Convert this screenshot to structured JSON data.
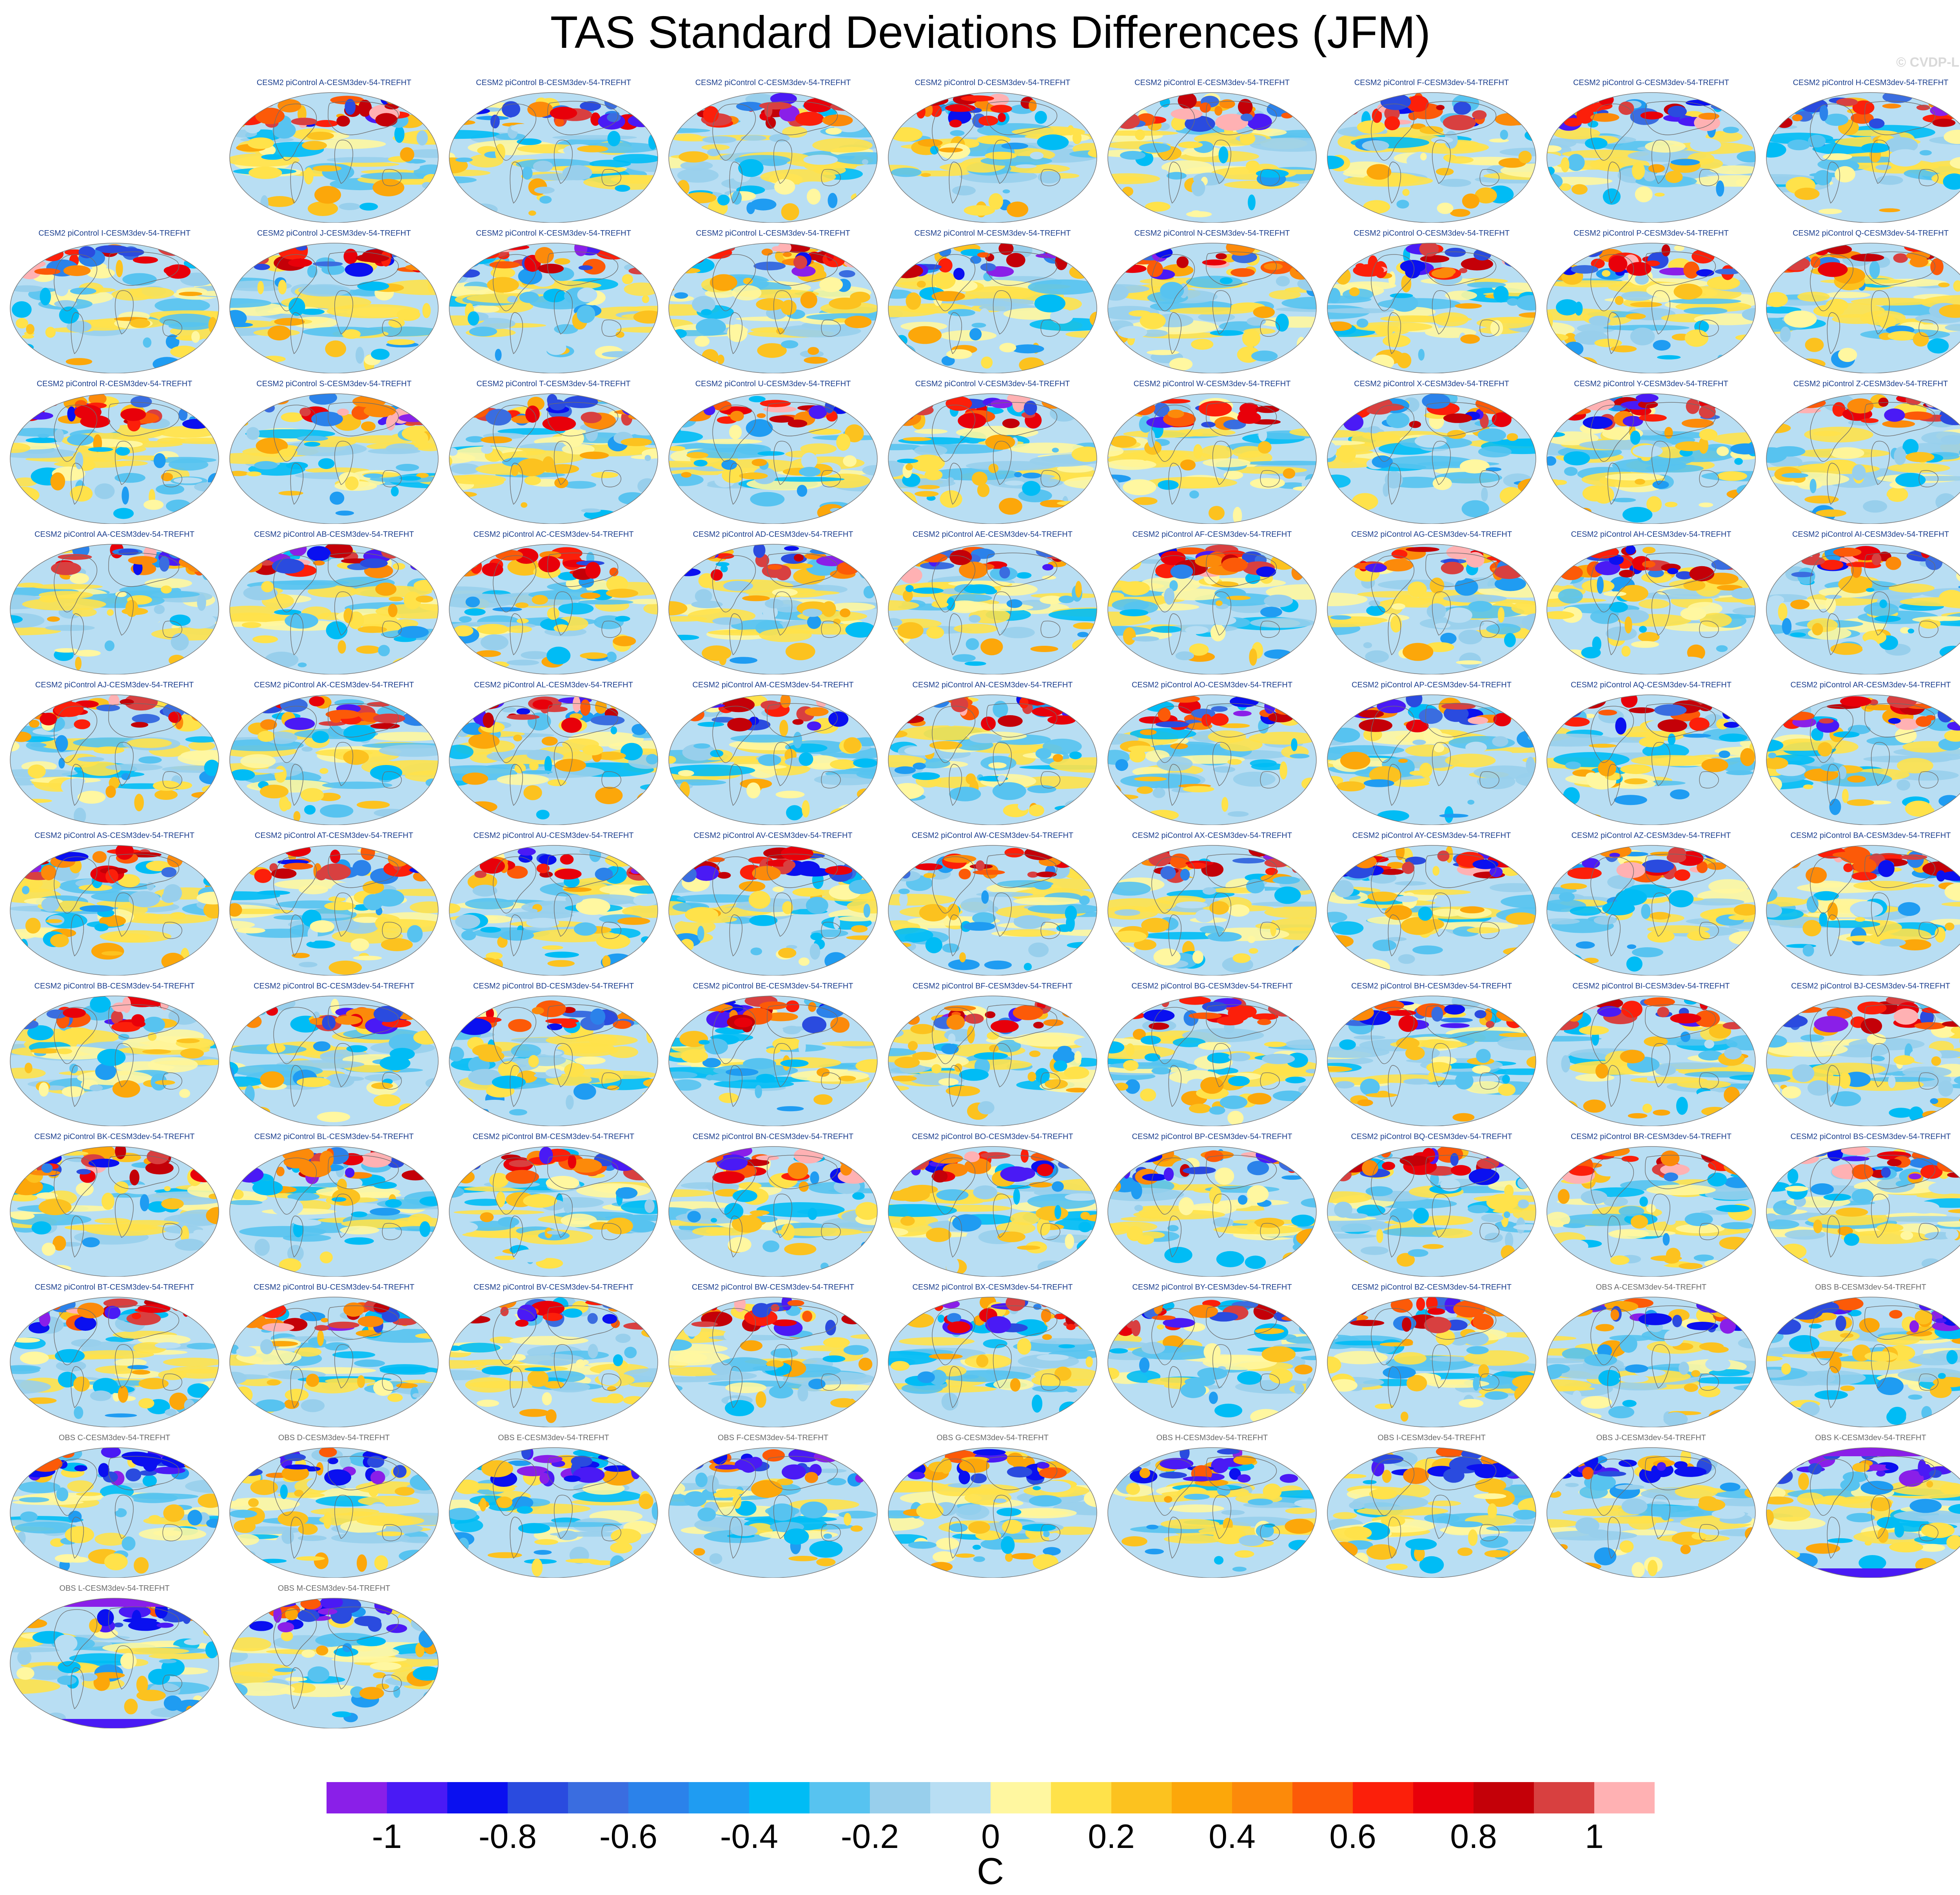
{
  "title": "TAS Standard Deviations Differences (JFM)",
  "watermark": "© CVDP-LE",
  "chart_data": {
    "type": "heatmap",
    "projection": "robinson-like global maps",
    "panels": [
      {
        "label": "CESM2 piControl A-CESM3dev-54-TREFHT",
        "kind": "model"
      },
      {
        "label": "CESM2 piControl B-CESM3dev-54-TREFHT",
        "kind": "model"
      },
      {
        "label": "CESM2 piControl C-CESM3dev-54-TREFHT",
        "kind": "model"
      },
      {
        "label": "CESM2 piControl D-CESM3dev-54-TREFHT",
        "kind": "model"
      },
      {
        "label": "CESM2 piControl E-CESM3dev-54-TREFHT",
        "kind": "model"
      },
      {
        "label": "CESM2 piControl F-CESM3dev-54-TREFHT",
        "kind": "model"
      },
      {
        "label": "CESM2 piControl G-CESM3dev-54-TREFHT",
        "kind": "model"
      },
      {
        "label": "CESM2 piControl H-CESM3dev-54-TREFHT",
        "kind": "model"
      },
      {
        "label": "CESM2 piControl I-CESM3dev-54-TREFHT",
        "kind": "model"
      },
      {
        "label": "CESM2 piControl J-CESM3dev-54-TREFHT",
        "kind": "model"
      },
      {
        "label": "CESM2 piControl K-CESM3dev-54-TREFHT",
        "kind": "model"
      },
      {
        "label": "CESM2 piControl L-CESM3dev-54-TREFHT",
        "kind": "model"
      },
      {
        "label": "CESM2 piControl M-CESM3dev-54-TREFHT",
        "kind": "model"
      },
      {
        "label": "CESM2 piControl N-CESM3dev-54-TREFHT",
        "kind": "model"
      },
      {
        "label": "CESM2 piControl O-CESM3dev-54-TREFHT",
        "kind": "model"
      },
      {
        "label": "CESM2 piControl P-CESM3dev-54-TREFHT",
        "kind": "model"
      },
      {
        "label": "CESM2 piControl Q-CESM3dev-54-TREFHT",
        "kind": "model"
      },
      {
        "label": "CESM2 piControl R-CESM3dev-54-TREFHT",
        "kind": "model"
      },
      {
        "label": "CESM2 piControl S-CESM3dev-54-TREFHT",
        "kind": "model"
      },
      {
        "label": "CESM2 piControl T-CESM3dev-54-TREFHT",
        "kind": "model"
      },
      {
        "label": "CESM2 piControl U-CESM3dev-54-TREFHT",
        "kind": "model"
      },
      {
        "label": "CESM2 piControl V-CESM3dev-54-TREFHT",
        "kind": "model"
      },
      {
        "label": "CESM2 piControl W-CESM3dev-54-TREFHT",
        "kind": "model"
      },
      {
        "label": "CESM2 piControl X-CESM3dev-54-TREFHT",
        "kind": "model"
      },
      {
        "label": "CESM2 piControl Y-CESM3dev-54-TREFHT",
        "kind": "model"
      },
      {
        "label": "CESM2 piControl Z-CESM3dev-54-TREFHT",
        "kind": "model"
      },
      {
        "label": "CESM2 piControl AA-CESM3dev-54-TREFHT",
        "kind": "model"
      },
      {
        "label": "CESM2 piControl AB-CESM3dev-54-TREFHT",
        "kind": "model"
      },
      {
        "label": "CESM2 piControl AC-CESM3dev-54-TREFHT",
        "kind": "model"
      },
      {
        "label": "CESM2 piControl AD-CESM3dev-54-TREFHT",
        "kind": "model"
      },
      {
        "label": "CESM2 piControl AE-CESM3dev-54-TREFHT",
        "kind": "model"
      },
      {
        "label": "CESM2 piControl AF-CESM3dev-54-TREFHT",
        "kind": "model"
      },
      {
        "label": "CESM2 piControl AG-CESM3dev-54-TREFHT",
        "kind": "model"
      },
      {
        "label": "CESM2 piControl AH-CESM3dev-54-TREFHT",
        "kind": "model"
      },
      {
        "label": "CESM2 piControl AI-CESM3dev-54-TREFHT",
        "kind": "model"
      },
      {
        "label": "CESM2 piControl AJ-CESM3dev-54-TREFHT",
        "kind": "model"
      },
      {
        "label": "CESM2 piControl AK-CESM3dev-54-TREFHT",
        "kind": "model"
      },
      {
        "label": "CESM2 piControl AL-CESM3dev-54-TREFHT",
        "kind": "model"
      },
      {
        "label": "CESM2 piControl AM-CESM3dev-54-TREFHT",
        "kind": "model"
      },
      {
        "label": "CESM2 piControl AN-CESM3dev-54-TREFHT",
        "kind": "model"
      },
      {
        "label": "CESM2 piControl AO-CESM3dev-54-TREFHT",
        "kind": "model"
      },
      {
        "label": "CESM2 piControl AP-CESM3dev-54-TREFHT",
        "kind": "model"
      },
      {
        "label": "CESM2 piControl AQ-CESM3dev-54-TREFHT",
        "kind": "model"
      },
      {
        "label": "CESM2 piControl AR-CESM3dev-54-TREFHT",
        "kind": "model"
      },
      {
        "label": "CESM2 piControl AS-CESM3dev-54-TREFHT",
        "kind": "model"
      },
      {
        "label": "CESM2 piControl AT-CESM3dev-54-TREFHT",
        "kind": "model"
      },
      {
        "label": "CESM2 piControl AU-CESM3dev-54-TREFHT",
        "kind": "model"
      },
      {
        "label": "CESM2 piControl AV-CESM3dev-54-TREFHT",
        "kind": "model"
      },
      {
        "label": "CESM2 piControl AW-CESM3dev-54-TREFHT",
        "kind": "model"
      },
      {
        "label": "CESM2 piControl AX-CESM3dev-54-TREFHT",
        "kind": "model"
      },
      {
        "label": "CESM2 piControl AY-CESM3dev-54-TREFHT",
        "kind": "model"
      },
      {
        "label": "CESM2 piControl AZ-CESM3dev-54-TREFHT",
        "kind": "model"
      },
      {
        "label": "CESM2 piControl BA-CESM3dev-54-TREFHT",
        "kind": "model"
      },
      {
        "label": "CESM2 piControl BB-CESM3dev-54-TREFHT",
        "kind": "model"
      },
      {
        "label": "CESM2 piControl BC-CESM3dev-54-TREFHT",
        "kind": "model"
      },
      {
        "label": "CESM2 piControl BD-CESM3dev-54-TREFHT",
        "kind": "model"
      },
      {
        "label": "CESM2 piControl BE-CESM3dev-54-TREFHT",
        "kind": "model"
      },
      {
        "label": "CESM2 piControl BF-CESM3dev-54-TREFHT",
        "kind": "model"
      },
      {
        "label": "CESM2 piControl BG-CESM3dev-54-TREFHT",
        "kind": "model"
      },
      {
        "label": "CESM2 piControl BH-CESM3dev-54-TREFHT",
        "kind": "model"
      },
      {
        "label": "CESM2 piControl BI-CESM3dev-54-TREFHT",
        "kind": "model"
      },
      {
        "label": "CESM2 piControl BJ-CESM3dev-54-TREFHT",
        "kind": "model"
      },
      {
        "label": "CESM2 piControl BK-CESM3dev-54-TREFHT",
        "kind": "model"
      },
      {
        "label": "CESM2 piControl BL-CESM3dev-54-TREFHT",
        "kind": "model"
      },
      {
        "label": "CESM2 piControl BM-CESM3dev-54-TREFHT",
        "kind": "model"
      },
      {
        "label": "CESM2 piControl BN-CESM3dev-54-TREFHT",
        "kind": "model"
      },
      {
        "label": "CESM2 piControl BO-CESM3dev-54-TREFHT",
        "kind": "model"
      },
      {
        "label": "CESM2 piControl BP-CESM3dev-54-TREFHT",
        "kind": "model"
      },
      {
        "label": "CESM2 piControl BQ-CESM3dev-54-TREFHT",
        "kind": "model"
      },
      {
        "label": "CESM2 piControl BR-CESM3dev-54-TREFHT",
        "kind": "model"
      },
      {
        "label": "CESM2 piControl BS-CESM3dev-54-TREFHT",
        "kind": "model"
      },
      {
        "label": "CESM2 piControl BT-CESM3dev-54-TREFHT",
        "kind": "model"
      },
      {
        "label": "CESM2 piControl BU-CESM3dev-54-TREFHT",
        "kind": "model"
      },
      {
        "label": "CESM2 piControl BV-CESM3dev-54-TREFHT",
        "kind": "model"
      },
      {
        "label": "CESM2 piControl BW-CESM3dev-54-TREFHT",
        "kind": "model"
      },
      {
        "label": "CESM2 piControl BX-CESM3dev-54-TREFHT",
        "kind": "model"
      },
      {
        "label": "CESM2 piControl BY-CESM3dev-54-TREFHT",
        "kind": "model"
      },
      {
        "label": "CESM2 piControl BZ-CESM3dev-54-TREFHT",
        "kind": "model"
      },
      {
        "label": "OBS A-CESM3dev-54-TREFHT",
        "kind": "obs"
      },
      {
        "label": "OBS B-CESM3dev-54-TREFHT",
        "kind": "obs"
      },
      {
        "label": "OBS C-CESM3dev-54-TREFHT",
        "kind": "obs"
      },
      {
        "label": "OBS D-CESM3dev-54-TREFHT",
        "kind": "obs"
      },
      {
        "label": "OBS E-CESM3dev-54-TREFHT",
        "kind": "obs"
      },
      {
        "label": "OBS F-CESM3dev-54-TREFHT",
        "kind": "obs"
      },
      {
        "label": "OBS G-CESM3dev-54-TREFHT",
        "kind": "obs"
      },
      {
        "label": "OBS H-CESM3dev-54-TREFHT",
        "kind": "obs"
      },
      {
        "label": "OBS I-CESM3dev-54-TREFHT",
        "kind": "obs"
      },
      {
        "label": "OBS J-CESM3dev-54-TREFHT",
        "kind": "obs"
      },
      {
        "label": "OBS K-CESM3dev-54-TREFHT",
        "kind": "obs"
      },
      {
        "label": "OBS L-CESM3dev-54-TREFHT",
        "kind": "obs"
      },
      {
        "label": "OBS M-CESM3dev-54-TREFHT",
        "kind": "obs"
      }
    ],
    "colorbar": {
      "levels": [
        -1.1,
        -1.0,
        -0.9,
        -0.8,
        -0.7,
        -0.6,
        -0.5,
        -0.4,
        -0.3,
        -0.2,
        -0.1,
        0,
        0.1,
        0.2,
        0.3,
        0.4,
        0.5,
        0.6,
        0.7,
        0.8,
        0.9,
        1.0,
        1.1
      ],
      "colors": [
        "#8a1fe8",
        "#4a1af5",
        "#0a10f0",
        "#2a4bdf",
        "#3a6de0",
        "#2b82ea",
        "#1f9cf2",
        "#00bcf5",
        "#57c3f0",
        "#98cfec",
        "#b8def3",
        "#fff7a0",
        "#ffe24a",
        "#fcc21f",
        "#fca70a",
        "#fc8a0a",
        "#fc5a08",
        "#fc1f0a",
        "#e8000a",
        "#c40008",
        "#d84040",
        "#ffb1b3"
      ],
      "tick_labels": [
        "-1",
        "-0.8",
        "-0.6",
        "-0.4",
        "-0.2",
        "0",
        "0.2",
        "0.4",
        "0.6",
        "0.8",
        "1"
      ],
      "tick_values": [
        -1,
        -0.8,
        -0.6,
        -0.4,
        -0.2,
        0,
        0.2,
        0.4,
        0.6,
        0.8,
        1
      ],
      "range": [
        -1.1,
        1.1
      ],
      "unit": "C"
    }
  }
}
